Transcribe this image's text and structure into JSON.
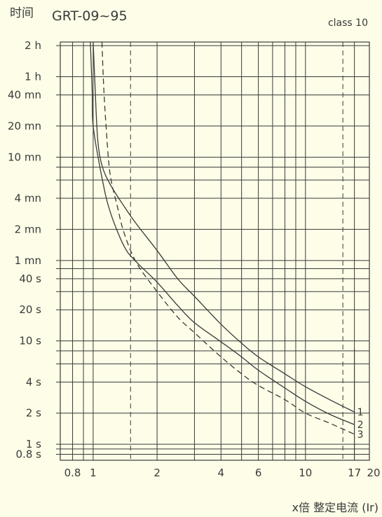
{
  "chart_data": {
    "type": "line",
    "title": "GRT-09~95",
    "subtitle": "class 10",
    "ylabel": "时间",
    "xlabel": "x倍 整定电流 (Ir)",
    "x_scale": "log",
    "y_scale": "log",
    "xlim": [
      0.7,
      20
    ],
    "ylim_seconds": [
      0.7,
      7800
    ],
    "grid": true,
    "x_ticks": [
      {
        "value": 0.8,
        "label": "0.8"
      },
      {
        "value": 1,
        "label": "1"
      },
      {
        "value": 2,
        "label": "2"
      },
      {
        "value": 4,
        "label": "4"
      },
      {
        "value": 6,
        "label": "6"
      },
      {
        "value": 10,
        "label": "10"
      },
      {
        "value": 17,
        "label": "17"
      },
      {
        "value": 20,
        "label": "20"
      }
    ],
    "x_minor_grid": [
      0.7,
      0.9,
      3,
      5,
      7,
      8,
      9,
      20
    ],
    "x_dashed_grid": [
      1.5,
      15
    ],
    "y_ticks": [
      {
        "value": 7200,
        "label": "2 h"
      },
      {
        "value": 3600,
        "label": "1 h"
      },
      {
        "value": 2400,
        "label": "40 mn"
      },
      {
        "value": 1200,
        "label": "20 mn"
      },
      {
        "value": 600,
        "label": "10 mn"
      },
      {
        "value": 240,
        "label": "4 mn"
      },
      {
        "value": 120,
        "label": "2 mn"
      },
      {
        "value": 60,
        "label": "1 mn"
      },
      {
        "value": 40,
        "label": "40 s"
      },
      {
        "value": 20,
        "label": "20 s"
      },
      {
        "value": 10,
        "label": "10 s"
      },
      {
        "value": 4,
        "label": "4 s"
      },
      {
        "value": 2,
        "label": "2 s"
      },
      {
        "value": 1,
        "label": "1 s"
      },
      {
        "value": 0.8,
        "label": "0.8 s"
      }
    ],
    "y_minor_grid": [
      480,
      360,
      50,
      30,
      8,
      6,
      0.9
    ],
    "series": [
      {
        "name": "1",
        "dashed": false,
        "points": [
          [
            1.0,
            7800
          ],
          [
            1.02,
            3000
          ],
          [
            1.05,
            900
          ],
          [
            1.1,
            500
          ],
          [
            1.2,
            330
          ],
          [
            1.4,
            200
          ],
          [
            1.6,
            135
          ],
          [
            2.0,
            75
          ],
          [
            2.5,
            40
          ],
          [
            3.0,
            27
          ],
          [
            4.0,
            14.5
          ],
          [
            5.0,
            9.5
          ],
          [
            6.0,
            7.0
          ],
          [
            8.0,
            4.8
          ],
          [
            10.0,
            3.6
          ],
          [
            13.0,
            2.7
          ],
          [
            17.0,
            2.05
          ]
        ]
      },
      {
        "name": "2",
        "dashed": false,
        "points": [
          [
            0.97,
            7800
          ],
          [
            0.99,
            2500
          ],
          [
            1.0,
            1200
          ],
          [
            1.1,
            380
          ],
          [
            1.2,
            180
          ],
          [
            1.4,
            82
          ],
          [
            1.6,
            58
          ],
          [
            2.0,
            37
          ],
          [
            2.5,
            22
          ],
          [
            3.0,
            15
          ],
          [
            4.0,
            9.8
          ],
          [
            5.0,
            7.0
          ],
          [
            6.0,
            5.2
          ],
          [
            8.0,
            3.5
          ],
          [
            10.0,
            2.6
          ],
          [
            13.0,
            1.95
          ],
          [
            17.0,
            1.55
          ]
        ]
      },
      {
        "name": "3",
        "dashed": true,
        "points": [
          [
            1.1,
            7800
          ],
          [
            1.12,
            3000
          ],
          [
            1.15,
            1200
          ],
          [
            1.2,
            420
          ],
          [
            1.3,
            200
          ],
          [
            1.4,
            110
          ],
          [
            1.6,
            57
          ],
          [
            2.0,
            30
          ],
          [
            2.5,
            17
          ],
          [
            3.0,
            12
          ],
          [
            4.0,
            7.0
          ],
          [
            5.0,
            4.8
          ],
          [
            6.0,
            3.7
          ],
          [
            8.0,
            2.7
          ],
          [
            10.0,
            2.0
          ],
          [
            13.0,
            1.6
          ],
          [
            17.0,
            1.25
          ]
        ]
      }
    ],
    "marker_line_x": 17,
    "marker_line_top_seconds": 8.5
  }
}
